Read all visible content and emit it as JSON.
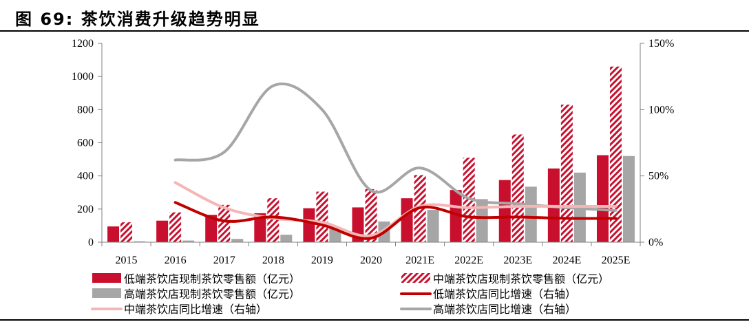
{
  "figure": {
    "title": "图 69:   茶饮消费升级趋势明显"
  },
  "chart_data": {
    "type": "bar",
    "categories": [
      "2015",
      "2016",
      "2017",
      "2018",
      "2019",
      "2020",
      "2021E",
      "2022E",
      "2023E",
      "2024E",
      "2025E"
    ],
    "series": [
      {
        "name": "低端茶饮店现制茶饮零售额（亿元）",
        "kind": "bar",
        "axis": "left",
        "color": "#C8102E",
        "values": [
          95,
          130,
          165,
          175,
          205,
          210,
          265,
          315,
          375,
          445,
          525
        ]
      },
      {
        "name": "中端茶饮店现制茶饮零售额（亿元）",
        "kind": "bar-hatched",
        "axis": "left",
        "color": "#C8102E",
        "values": [
          120,
          180,
          225,
          265,
          305,
          320,
          405,
          510,
          650,
          830,
          1060
        ]
      },
      {
        "name": "高端茶饮店现制茶饮零售额（亿元）",
        "kind": "bar",
        "axis": "left",
        "color": "#A6A6A6",
        "values": [
          5,
          10,
          20,
          45,
          90,
          125,
          195,
          260,
          335,
          420,
          520
        ]
      },
      {
        "name": "低端茶饮店同比增速（右轴）",
        "kind": "line",
        "axis": "right",
        "color": "#C00000",
        "values": [
          null,
          0.3,
          0.16,
          0.19,
          0.13,
          0.03,
          0.26,
          0.19,
          0.19,
          0.18,
          0.18
        ]
      },
      {
        "name": "中端茶饮店同比增速（右轴）",
        "kind": "line",
        "axis": "right",
        "color": "#F4B6B6",
        "values": [
          null,
          0.45,
          0.26,
          0.18,
          0.15,
          0.05,
          0.27,
          0.26,
          0.27,
          0.27,
          0.27
        ]
      },
      {
        "name": "高端茶饮店同比增速（右轴）",
        "kind": "line",
        "axis": "right",
        "color": "#A6A6A6",
        "values": [
          null,
          0.62,
          0.68,
          1.18,
          1.0,
          0.39,
          0.56,
          0.33,
          0.29,
          0.26,
          0.24
        ]
      }
    ],
    "left_axis": {
      "min": 0,
      "max": 1200,
      "ticks": [
        "0",
        "200",
        "400",
        "600",
        "800",
        "1000",
        "1200"
      ]
    },
    "right_axis": {
      "min": 0,
      "max": 1.5,
      "ticks": [
        "0%",
        "50%",
        "100%",
        "150%"
      ]
    },
    "legend_position": "bottom",
    "grid": false,
    "xlabel": "",
    "ylabel": ""
  }
}
